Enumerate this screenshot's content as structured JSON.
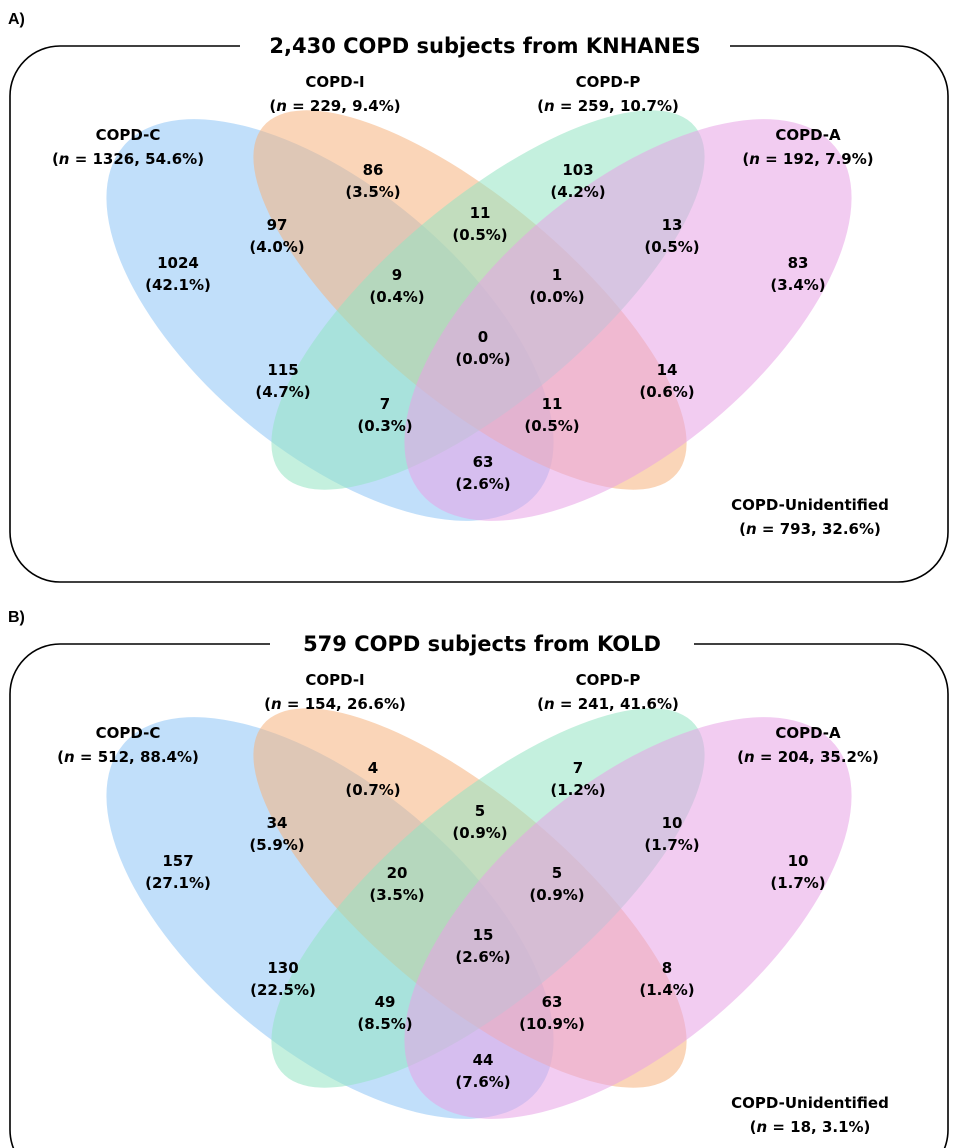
{
  "colors": {
    "copd_c": "#8ec5f5",
    "copd_i": "#f6b27e",
    "copd_p": "#93e3c2",
    "copd_a": "#e8a3e6"
  },
  "panels": [
    {
      "letter": "A)",
      "title": "2,430 COPD subjects from KNHANES",
      "sets": {
        "c": {
          "name": "COPD-C",
          "n": "1326",
          "pct": "54.6%"
        },
        "i": {
          "name": "COPD-I",
          "n": "229",
          "pct": "9.4%"
        },
        "p": {
          "name": "COPD-P",
          "n": "259",
          "pct": "10.7%"
        },
        "a": {
          "name": "COPD-A",
          "n": "192",
          "pct": "7.9%"
        },
        "u": {
          "name": "COPD-Unidentified",
          "n": "793",
          "pct": "32.6%"
        }
      },
      "regions": {
        "C": {
          "count": "1024",
          "pct": "(42.1%)"
        },
        "I": {
          "count": "86",
          "pct": "(3.5%)"
        },
        "P": {
          "count": "103",
          "pct": "(4.2%)"
        },
        "A": {
          "count": "83",
          "pct": "(3.4%)"
        },
        "CI": {
          "count": "97",
          "pct": "(4.0%)"
        },
        "IP": {
          "count": "11",
          "pct": "(0.5%)"
        },
        "PA": {
          "count": "13",
          "pct": "(0.5%)"
        },
        "CIP": {
          "count": "9",
          "pct": "(0.4%)"
        },
        "IPA": {
          "count": "1",
          "pct": "(0.0%)"
        },
        "CIPA": {
          "count": "0",
          "pct": "(0.0%)"
        },
        "CP": {
          "count": "115",
          "pct": "(4.7%)"
        },
        "IA": {
          "count": "14",
          "pct": "(0.6%)"
        },
        "CPA": {
          "count": "7",
          "pct": "(0.3%)"
        },
        "CIA": {
          "count": "11",
          "pct": "(0.5%)"
        },
        "CA": {
          "count": "63",
          "pct": "(2.6%)"
        }
      }
    },
    {
      "letter": "B)",
      "title": "579 COPD subjects from KOLD",
      "sets": {
        "c": {
          "name": "COPD-C",
          "n": "512",
          "pct": "88.4%"
        },
        "i": {
          "name": "COPD-I",
          "n": "154",
          "pct": "26.6%"
        },
        "p": {
          "name": "COPD-P",
          "n": "241",
          "pct": "41.6%"
        },
        "a": {
          "name": "COPD-A",
          "n": "204",
          "pct": "35.2%"
        },
        "u": {
          "name": "COPD-Unidentified",
          "n": "18",
          "pct": "3.1%"
        }
      },
      "regions": {
        "C": {
          "count": "157",
          "pct": "(27.1%)"
        },
        "I": {
          "count": "4",
          "pct": "(0.7%)"
        },
        "P": {
          "count": "7",
          "pct": "(1.2%)"
        },
        "A": {
          "count": "10",
          "pct": "(1.7%)"
        },
        "CI": {
          "count": "34",
          "pct": "(5.9%)"
        },
        "IP": {
          "count": "5",
          "pct": "(0.9%)"
        },
        "PA": {
          "count": "10",
          "pct": "(1.7%)"
        },
        "CIP": {
          "count": "20",
          "pct": "(3.5%)"
        },
        "IPA": {
          "count": "5",
          "pct": "(0.9%)"
        },
        "CIPA": {
          "count": "15",
          "pct": "(2.6%)"
        },
        "CP": {
          "count": "130",
          "pct": "(22.5%)"
        },
        "IA": {
          "count": "8",
          "pct": "(1.4%)"
        },
        "CPA": {
          "count": "49",
          "pct": "(8.5%)"
        },
        "CIA": {
          "count": "63",
          "pct": "(10.9%)"
        },
        "CA": {
          "count": "44",
          "pct": "(7.6%)"
        }
      }
    }
  ]
}
